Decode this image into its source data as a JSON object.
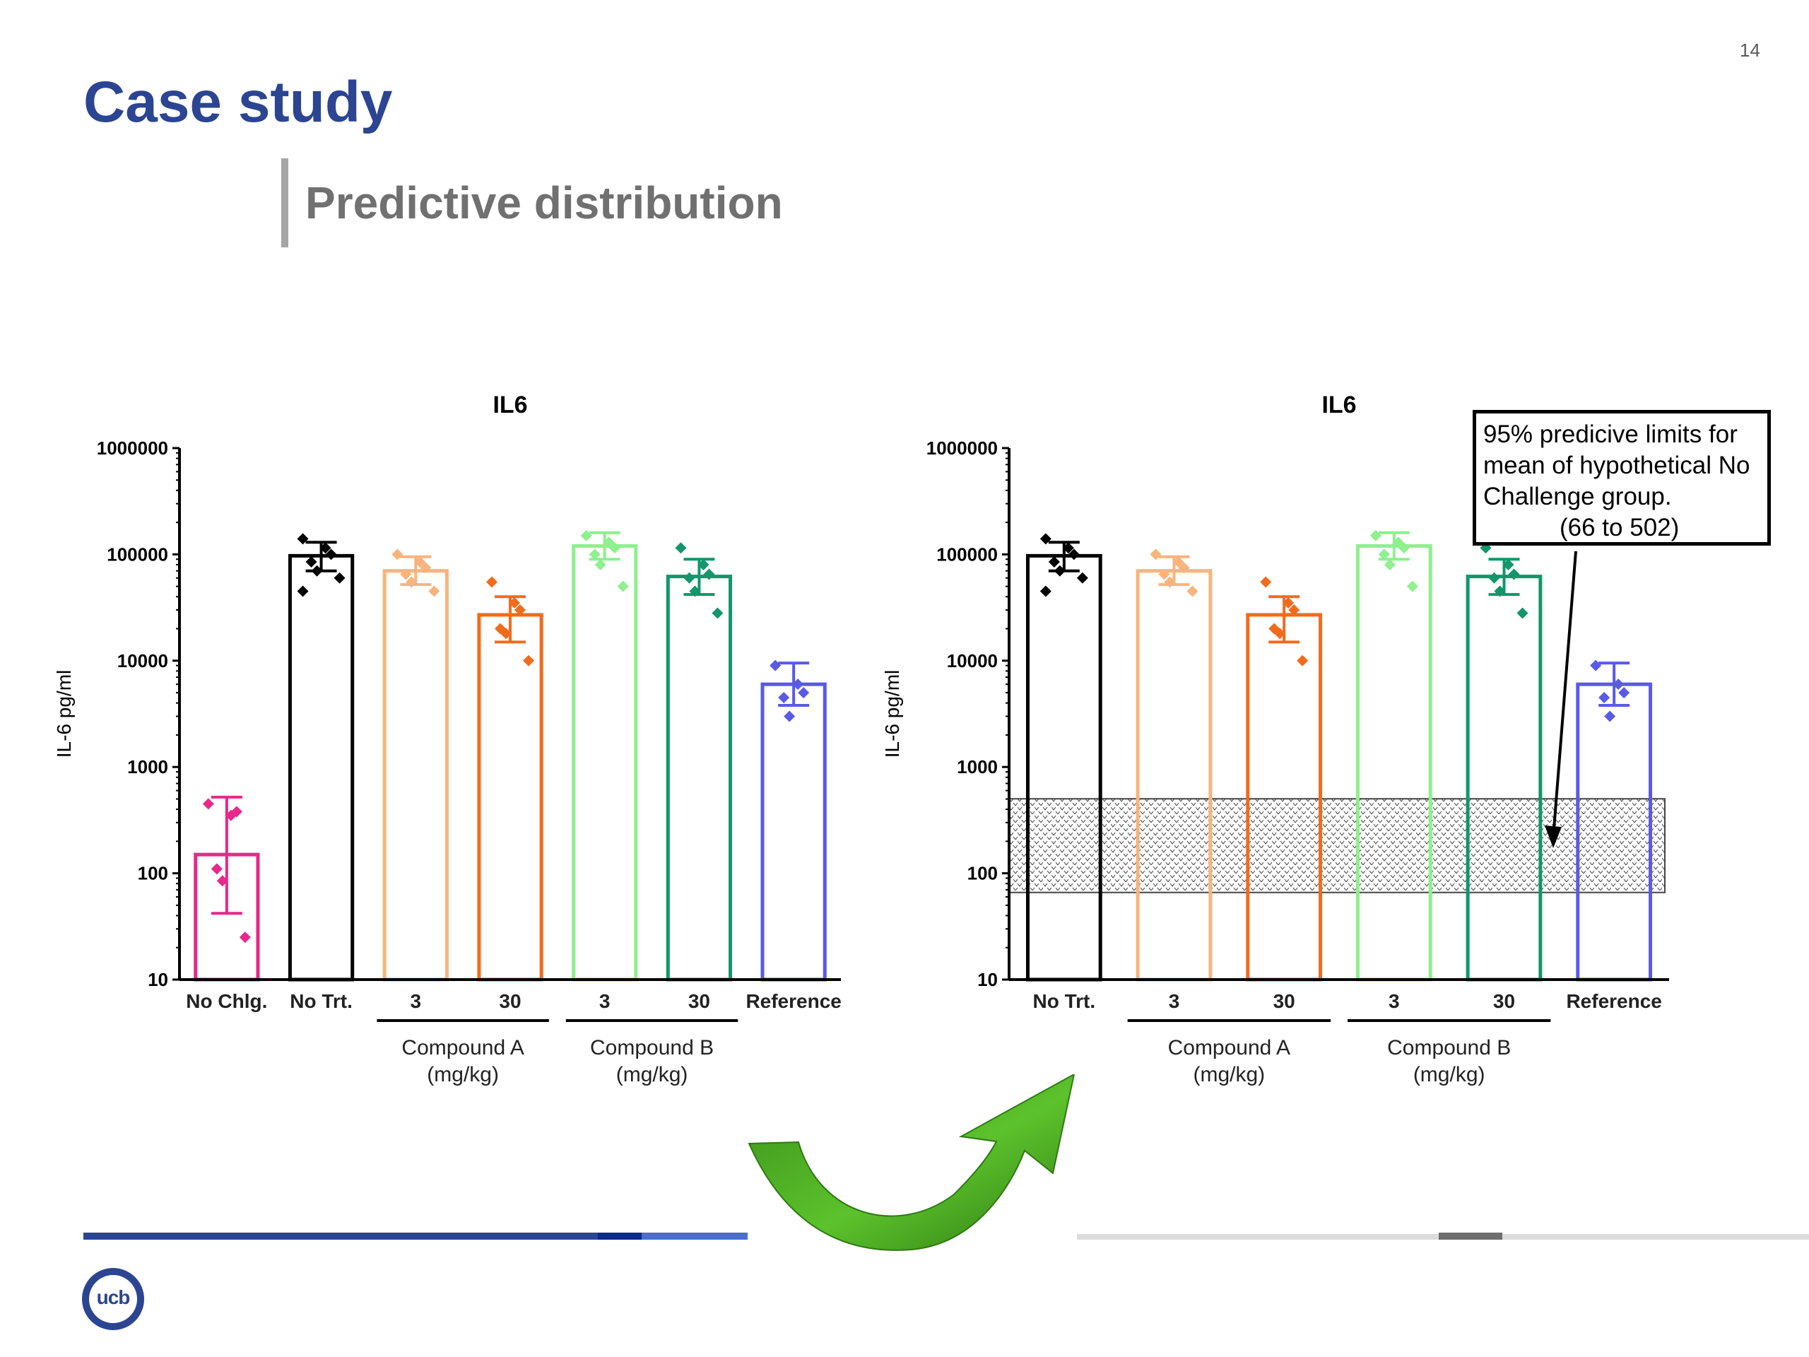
{
  "slide": {
    "title": "Case study",
    "subtitle": "Predictive distribution",
    "page_number": "14",
    "logo_text": "ucb"
  },
  "annotation": {
    "line1": "95% predicive limits for",
    "line2": "mean of hypothetical No",
    "line3": "Challenge group.",
    "line4": "(66 to 502)"
  },
  "colors": {
    "title": "#2c4592",
    "no_chlg": "#e8288a",
    "no_trt": "#000000",
    "compA_3": "#f8b47c",
    "compA_30": "#f26b1d",
    "compB_3": "#8ef08e",
    "compB_30": "#12966a",
    "reference": "#5a5ae6",
    "footer_bar": "#2c4592",
    "arrow": "#3f9c1f"
  },
  "chart_data": [
    {
      "type": "bar",
      "title": "IL6",
      "ylabel": "IL-6 pg/ml",
      "yscale": "log",
      "ylim": [
        10,
        1000000
      ],
      "yticks": [
        "10",
        "100",
        "1000",
        "10000",
        "100000",
        "1000000"
      ],
      "categories": [
        "No Chlg.",
        "No Trt.",
        "3",
        "30",
        "3",
        "30",
        "Reference"
      ],
      "groups": [
        {
          "label_line1": "Compound A",
          "label_line2": "(mg/kg)",
          "from": 2,
          "to": 3
        },
        {
          "label_line1": "Compound B",
          "label_line2": "(mg/kg)",
          "from": 4,
          "to": 5
        }
      ],
      "series": [
        {
          "values": [
            150,
            97000,
            70000,
            27000,
            120000,
            62000,
            6000
          ],
          "err_low": [
            42,
            70000,
            52000,
            15000,
            90000,
            42000,
            3800
          ],
          "err_high": [
            520,
            130000,
            95000,
            40000,
            160000,
            90000,
            9500
          ],
          "points": [
            [
              450,
              350,
              380,
              110,
              85,
              25
            ],
            [
              140000,
              115000,
              100000,
              85000,
              70000,
              60000,
              45000
            ],
            [
              100000,
              85000,
              75000,
              65000,
              55000,
              45000
            ],
            [
              55000,
              35000,
              30000,
              20000,
              18000,
              10000
            ],
            [
              150000,
              130000,
              115000,
              100000,
              80000,
              50000
            ],
            [
              115000,
              80000,
              65000,
              60000,
              45000,
              28000
            ],
            [
              9000,
              6000,
              5000,
              4500,
              3000
            ]
          ]
        }
      ],
      "colors": [
        "#e8288a",
        "#000000",
        "#f8b47c",
        "#f26b1d",
        "#8ef08e",
        "#12966a",
        "#5a5ae6"
      ]
    },
    {
      "type": "bar",
      "title": "IL6",
      "ylabel": "IL-6 pg/ml",
      "yscale": "log",
      "ylim": [
        10,
        1000000
      ],
      "yticks": [
        "10",
        "100",
        "1000",
        "10000",
        "100000",
        "1000000"
      ],
      "categories": [
        "No Trt.",
        "3",
        "30",
        "3",
        "30",
        "Reference"
      ],
      "groups": [
        {
          "label_line1": "Compound A",
          "label_line2": "(mg/kg)",
          "from": 1,
          "to": 2
        },
        {
          "label_line1": "Compound B",
          "label_line2": "(mg/kg)",
          "from": 3,
          "to": 4
        }
      ],
      "predictive_band": [
        66,
        502
      ],
      "series": [
        {
          "values": [
            97000,
            70000,
            27000,
            120000,
            62000,
            6000
          ],
          "err_low": [
            70000,
            52000,
            15000,
            90000,
            42000,
            3800
          ],
          "err_high": [
            130000,
            95000,
            40000,
            160000,
            90000,
            9500
          ],
          "points": [
            [
              140000,
              115000,
              100000,
              85000,
              70000,
              60000,
              45000
            ],
            [
              100000,
              85000,
              75000,
              65000,
              55000,
              45000
            ],
            [
              55000,
              35000,
              30000,
              20000,
              18000,
              10000
            ],
            [
              150000,
              130000,
              115000,
              100000,
              80000,
              50000
            ],
            [
              115000,
              80000,
              65000,
              60000,
              45000,
              28000
            ],
            [
              9000,
              6000,
              5000,
              4500,
              3000
            ]
          ]
        }
      ],
      "colors": [
        "#000000",
        "#f8b47c",
        "#f26b1d",
        "#8ef08e",
        "#12966a",
        "#5a5ae6"
      ]
    }
  ]
}
